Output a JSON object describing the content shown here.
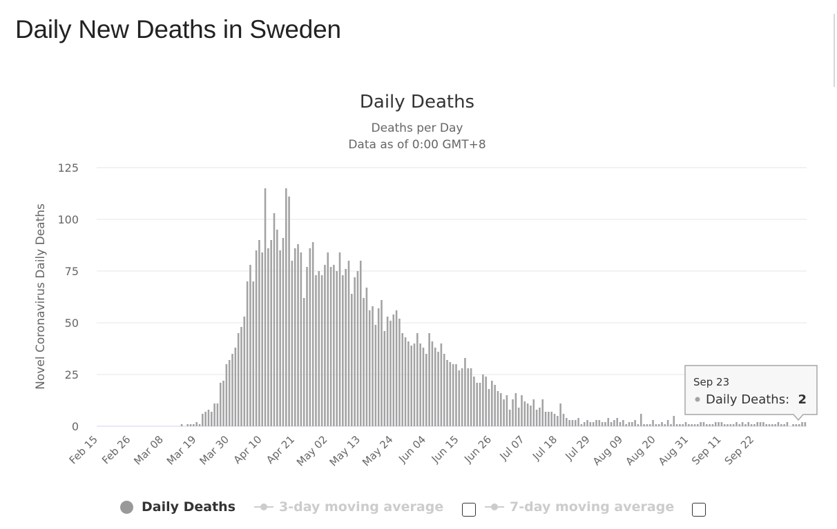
{
  "page_title": "Daily New Deaths in Sweden",
  "colors": {
    "bar": "#a3a3a3",
    "grid": "#e6e6e6",
    "axis_text": "#666666",
    "title": "#333333",
    "legend_disabled": "#cccccc"
  },
  "chart_data": {
    "type": "bar",
    "title": "Daily Deaths",
    "subtitle_lines": [
      "Deaths per Day",
      "Data as of 0:00 GMT+8"
    ],
    "xlabel": "",
    "ylabel": "Novel Coronavirus Daily Deaths",
    "ylim": [
      0,
      125
    ],
    "yticks": [
      0,
      25,
      50,
      75,
      100,
      125
    ],
    "grid": true,
    "x_start": "Feb 15",
    "x_end": "Sep 23",
    "x_tick_labels": [
      "Feb 15",
      "Feb 26",
      "Mar 08",
      "Mar 19",
      "Mar 30",
      "Apr 10",
      "Apr 21",
      "May 02",
      "May 13",
      "May 24",
      "Jun 04",
      "Jun 15",
      "Jun 26",
      "Jul 07",
      "Jul 18",
      "Jul 29",
      "Aug 09",
      "Aug 20",
      "Aug 31",
      "Sep 11",
      "Sep 22"
    ],
    "series": [
      {
        "name": "Daily Deaths",
        "values": [
          0,
          0,
          0,
          0,
          0,
          0,
          0,
          0,
          0,
          0,
          0,
          0,
          0,
          0,
          0,
          0,
          0,
          0,
          0,
          0,
          0,
          0,
          0,
          0,
          0,
          0,
          0,
          0,
          1,
          0,
          1,
          1,
          1,
          2,
          1,
          6,
          7,
          8,
          7,
          11,
          11,
          21,
          22,
          30,
          32,
          35,
          38,
          45,
          48,
          53,
          70,
          78,
          70,
          85,
          90,
          84,
          115,
          86,
          90,
          103,
          95,
          85,
          91,
          115,
          111,
          80,
          86,
          88,
          84,
          62,
          77,
          86,
          89,
          73,
          75,
          73,
          78,
          84,
          77,
          78,
          75,
          84,
          73,
          76,
          80,
          64,
          72,
          75,
          80,
          62,
          67,
          56,
          58,
          49,
          57,
          61,
          46,
          53,
          51,
          54,
          56,
          52,
          45,
          43,
          41,
          39,
          40,
          45,
          40,
          38,
          35,
          45,
          41,
          38,
          36,
          40,
          35,
          32,
          31,
          30,
          30,
          27,
          28,
          33,
          28,
          28,
          24,
          21,
          21,
          25,
          24,
          18,
          22,
          20,
          17,
          16,
          13,
          15,
          8,
          13,
          16,
          9,
          15,
          12,
          11,
          10,
          13,
          8,
          9,
          13,
          7,
          7,
          7,
          6,
          5,
          11,
          6,
          4,
          3,
          3,
          3,
          4,
          1,
          2,
          3,
          2,
          2,
          3,
          3,
          2,
          2,
          4,
          2,
          3,
          4,
          2,
          3,
          1,
          2,
          2,
          3,
          1,
          6,
          1,
          1,
          1,
          3,
          1,
          1,
          2,
          1,
          3,
          1,
          5,
          1,
          1,
          1,
          2,
          1,
          1,
          1,
          1,
          2,
          2,
          1,
          1,
          1,
          2,
          2,
          2,
          1,
          1,
          1,
          1,
          2,
          1,
          2,
          1,
          2,
          1,
          1,
          2,
          2,
          2,
          1,
          1,
          1,
          1,
          2,
          1,
          1,
          2,
          0,
          1,
          1,
          1,
          2,
          2
        ],
        "color": "#a3a3a3"
      }
    ],
    "tooltip": {
      "date": "Sep 23",
      "series_label": "Daily Deaths:",
      "value": "2"
    }
  },
  "legend": {
    "items": [
      {
        "label": "Daily Deaths",
        "visible": true
      },
      {
        "label": "3-day moving average",
        "visible": false
      },
      {
        "label": "7-day moving average",
        "visible": false
      }
    ]
  }
}
